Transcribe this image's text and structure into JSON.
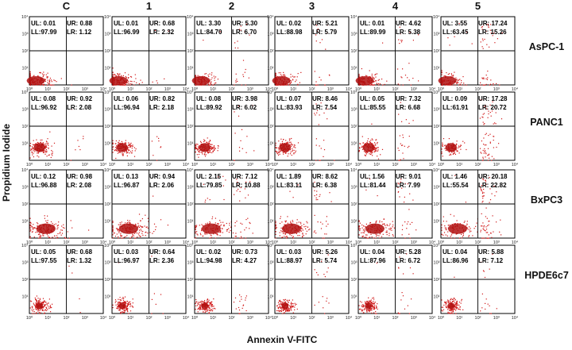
{
  "chart_data": {
    "type": "scatter",
    "title": "",
    "description_type": "flow-cytometry-grid",
    "xlabel": "Annexin V-FITC",
    "ylabel": "Propidium Iodide",
    "x_scale": "log",
    "y_scale": "log",
    "xlim": [
      1,
      10000
    ],
    "ylim": [
      1,
      10000
    ],
    "tick_labels": [
      "10⁰",
      "10¹",
      "10²",
      "10³",
      "10⁴"
    ],
    "quadrant_gate": {
      "x": 100,
      "y": 100
    },
    "columns": [
      "C",
      "1",
      "2",
      "3",
      "4",
      "5"
    ],
    "rows": [
      "AsPC-1",
      "PANC1",
      "BxPC3",
      "HPDE6c7"
    ],
    "point_color": "#d01818",
    "quadrant_values": [
      [
        {
          "UL": "0.01",
          "UR": "0.88",
          "LL": "97.99",
          "LR": "1.12"
        },
        {
          "UL": "0.01",
          "UR": "0.68",
          "LL": "96.99",
          "LR": "2.32"
        },
        {
          "UL": "3.30",
          "UR": "5.30",
          "LL": "84.70",
          "LR": "6.70"
        },
        {
          "UL": "0.02",
          "UR": "5.21",
          "LL": "88.98",
          "LR": "5.79"
        },
        {
          "UL": "0.01",
          "UR": "4.62",
          "LL": "89.99",
          "LR": "5.38"
        },
        {
          "UL": "3.55",
          "UR": "17.24",
          "LL": "63.45",
          "LR": "15.26"
        }
      ],
      [
        {
          "UL": "0.08",
          "UR": "0.92",
          "LL": "96.92",
          "LR": "2.08"
        },
        {
          "UL": "0.06",
          "UR": "0.82",
          "LL": "96.94",
          "LR": "2.18"
        },
        {
          "UL": "0.08",
          "UR": "3.98",
          "LL": "89.92",
          "LR": "6.02"
        },
        {
          "UL": "0.07",
          "UR": "8.46",
          "LL": "83.93",
          "LR": "7.54"
        },
        {
          "UL": "0.05",
          "UR": "7.32",
          "LL": "85.55",
          "LR": "6.68"
        },
        {
          "UL": "0.09",
          "UR": "17.28",
          "LL": "61.91",
          "LR": "20.72"
        }
      ],
      [
        {
          "UL": "0.12",
          "UR": "0.98",
          "LL": "96.88",
          "LR": "2.08"
        },
        {
          "UL": "0.13",
          "UR": "0.94",
          "LL": "96.87",
          "LR": "2.06"
        },
        {
          "UL": "2.15",
          "UR": "7.12",
          "LL": "79.85",
          "LR": "10.88"
        },
        {
          "UL": "1.89",
          "UR": "8.62",
          "LL": "83.11",
          "LR": "6.38"
        },
        {
          "UL": "1.56",
          "UR": "9.01",
          "LL": "81.44",
          "LR": "7.99"
        },
        {
          "UL": "1.46",
          "UR": "20.18",
          "LL": "55.54",
          "LR": "22.82"
        }
      ],
      [
        {
          "UL": "0.05",
          "UR": "0.68",
          "LL": "97.55",
          "LR": "1.32"
        },
        {
          "UL": "0.03",
          "UR": "0.64",
          "LL": "96.97",
          "LR": "2.36"
        },
        {
          "UL": "0.02",
          "UR": "0.73",
          "LL": "94.98",
          "LR": "4.27"
        },
        {
          "UL": "0.03",
          "UR": "5.26",
          "LL": "88.97",
          "LR": "5.74"
        },
        {
          "UL": "0.04",
          "UR": "5.28",
          "LL": "87.96",
          "LR": "6.72"
        },
        {
          "UL": "0.04",
          "UR": "5.88",
          "LL": "86.96",
          "LR": "7.12"
        }
      ]
    ]
  },
  "labels": {
    "ul": "UL:",
    "ur": "UR:",
    "ll": "LL:",
    "lr": "LR:"
  }
}
